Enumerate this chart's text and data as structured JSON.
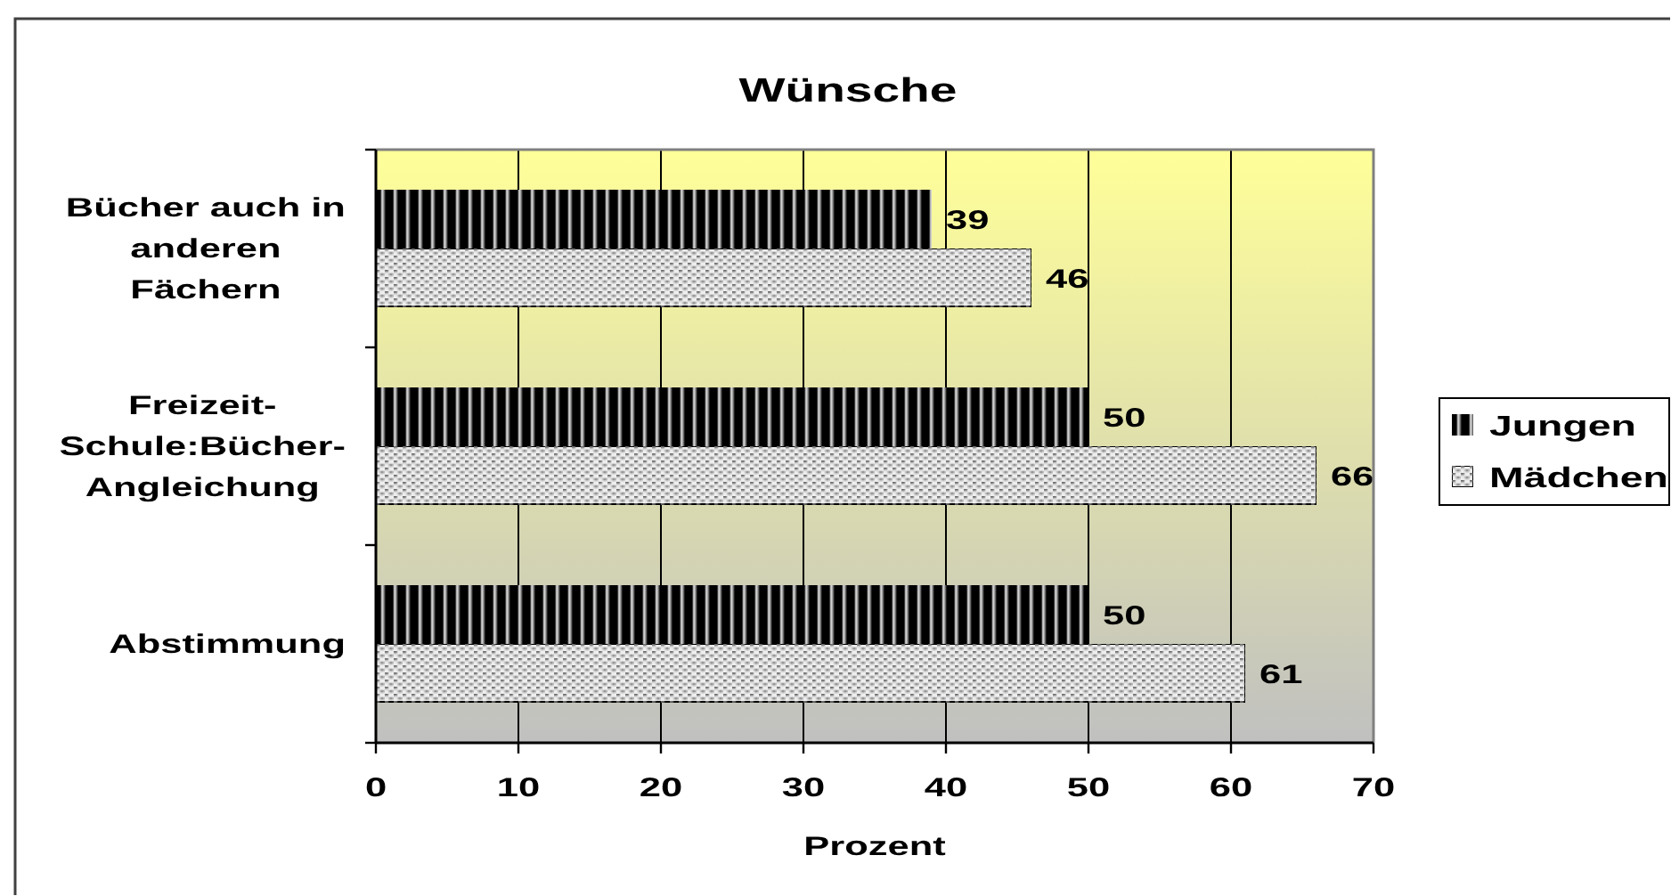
{
  "chart_data": {
    "type": "bar",
    "orientation": "horizontal",
    "title": "Wünsche",
    "xlabel": "Prozent",
    "categories": [
      "Bücher auch in anderen Fächern",
      "Freizeit-Schule:Bücher-Angleichung",
      "Abstimmung"
    ],
    "series": [
      {
        "name": "Jungen",
        "color": "#000000",
        "values": [
          39,
          50,
          50
        ]
      },
      {
        "name": "Mädchen",
        "color": "#eeeeee",
        "values": [
          46,
          66,
          61
        ]
      }
    ],
    "xlim": [
      0,
      70
    ],
    "xticks": [
      0,
      10,
      20,
      30,
      40,
      50,
      60,
      70
    ],
    "grid": "x",
    "legend": "right",
    "data_labels": true
  }
}
